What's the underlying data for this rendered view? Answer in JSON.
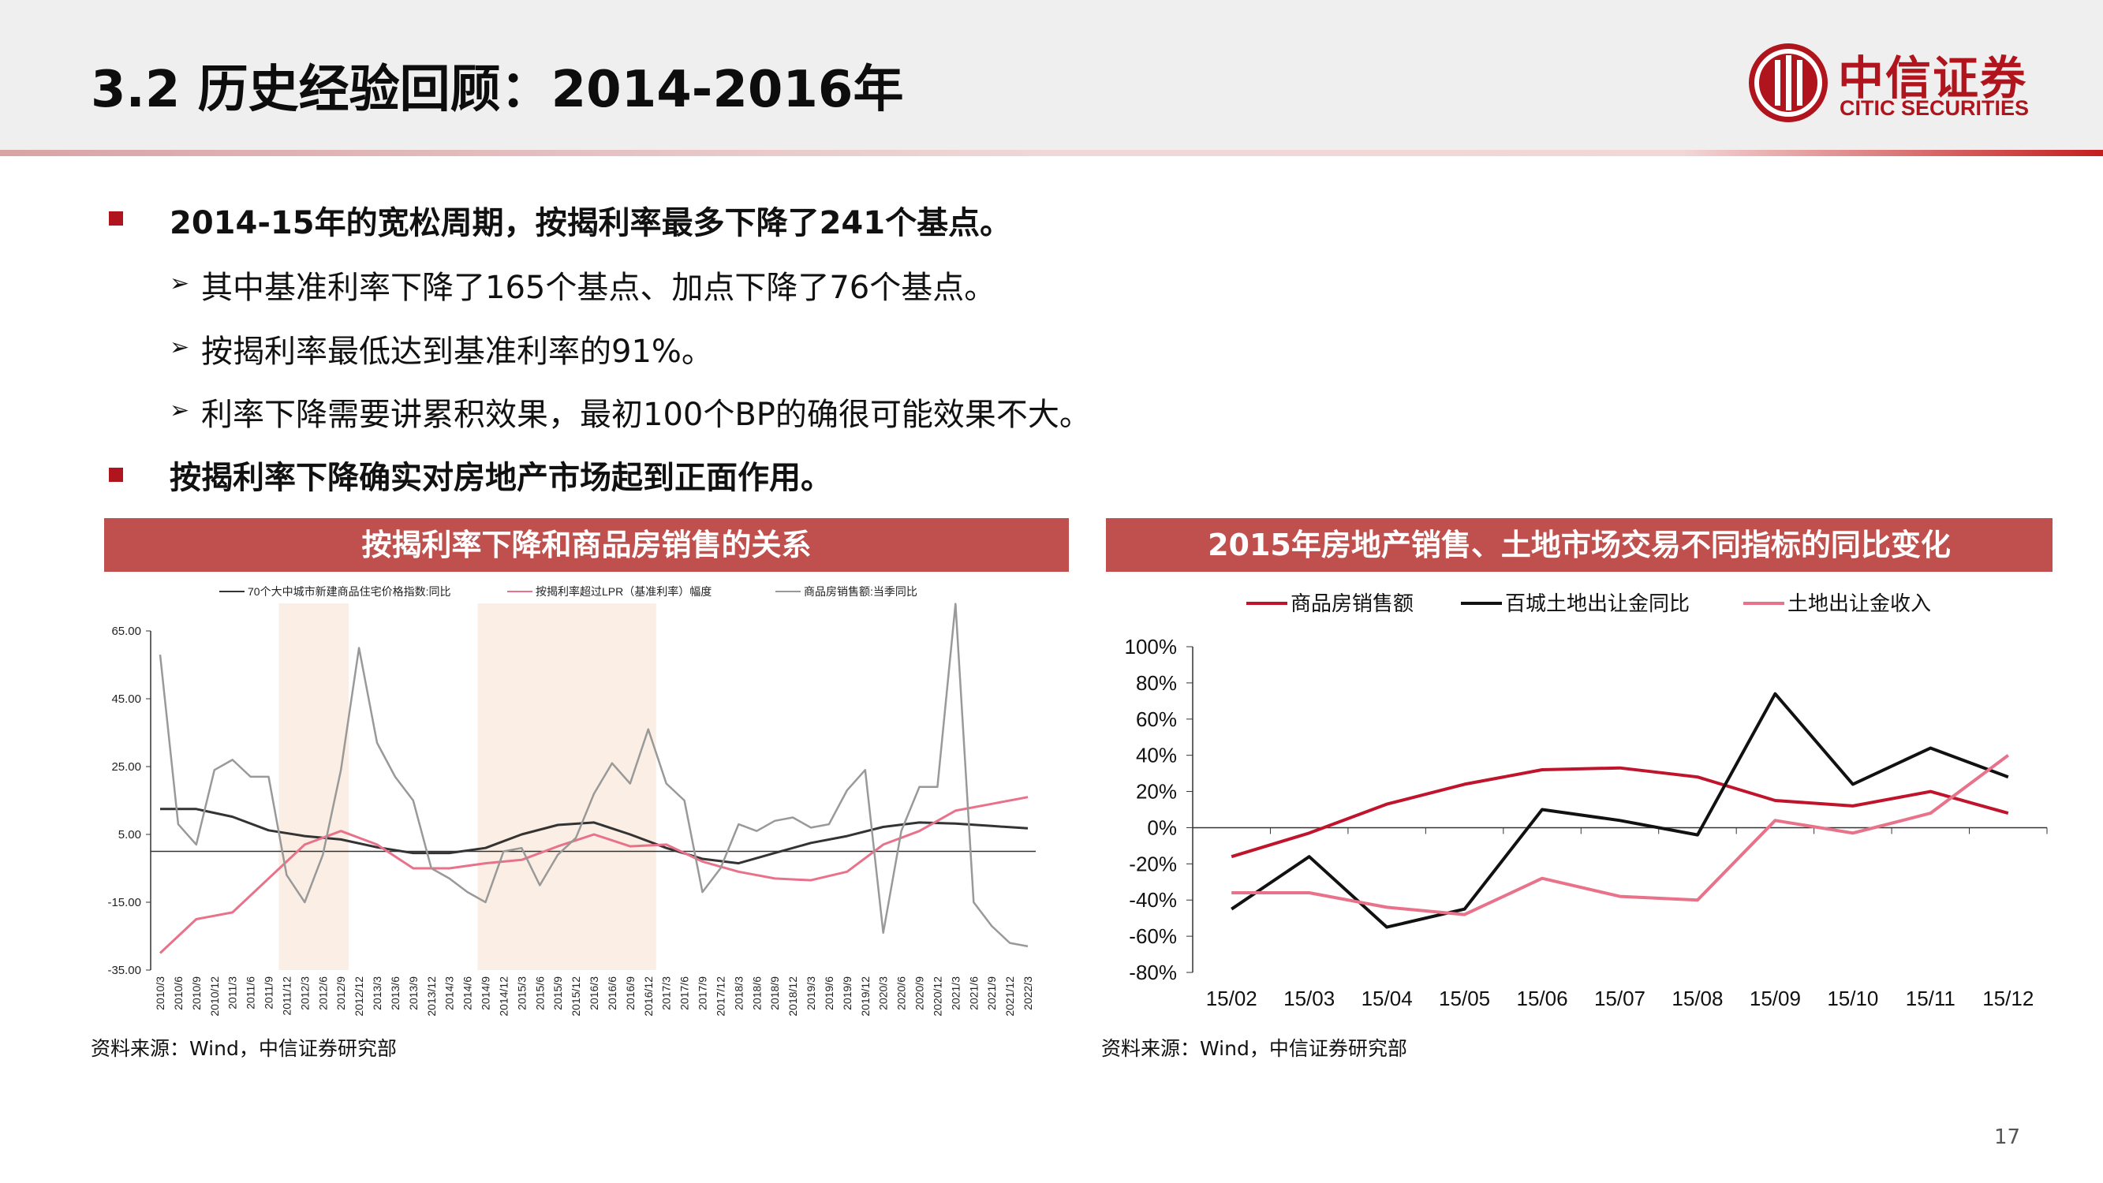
{
  "slide": {
    "title": "3.2 历史经验回顾：2014-2016年",
    "page_number": "17",
    "brand": {
      "name_cn": "中信证券",
      "name_en": "CITIC SECURITIES",
      "color": "#b0141c"
    }
  },
  "bullets": [
    {
      "level": 1,
      "text": "2014-15年的宽松周期，按揭利率最多下降了241个基点。"
    },
    {
      "level": 2,
      "text": "其中基准利率下降了165个基点、加点下降了76个基点。"
    },
    {
      "level": 2,
      "text": "按揭利率最低达到基准利率的91%。"
    },
    {
      "level": 2,
      "text": "利率下降需要讲累积效果，最初100个BP的确很可能效果不大。"
    },
    {
      "level": 1,
      "text": "按揭利率下降确实对房地产市场起到正面作用。"
    }
  ],
  "chart_data": [
    {
      "type": "line",
      "title": "按揭利率下降和商品房销售的关系",
      "source": "资料来源：Wind，中信证券研究部",
      "legend": [
        "70个大中城市新建商品住宅价格指数:同比",
        "按揭利率超过LPR（基准利率）幅度",
        "商品房销售额:当季同比"
      ],
      "legend_position": "top",
      "y_ticks": [
        "65.00",
        "45.00",
        "25.00",
        "5.00",
        "-15.00",
        "-35.00"
      ],
      "ylim": [
        -35,
        65
      ],
      "x_ticks": [
        "2010/3",
        "2010/6",
        "2010/9",
        "2010/12",
        "2011/3",
        "2011/6",
        "2011/9",
        "2011/12",
        "2012/3",
        "2012/6",
        "2012/9",
        "2012/12",
        "2013/3",
        "2013/6",
        "2013/9",
        "2013/12",
        "2014/3",
        "2014/6",
        "2014/9",
        "2014/12",
        "2015/3",
        "2015/6",
        "2015/9",
        "2015/12",
        "2016/3",
        "2016/6",
        "2016/9",
        "2016/12",
        "2017/3",
        "2017/6",
        "2017/9",
        "2017/12",
        "2018/3",
        "2018/6",
        "2018/9",
        "2018/12",
        "2019/3",
        "2019/6",
        "2019/9",
        "2019/12",
        "2020/3",
        "2020/6",
        "2020/9",
        "2020/12",
        "2021/3",
        "2021/6",
        "2021/9",
        "2021/12",
        "2022/3"
      ],
      "shaded_periods": [
        [
          "2011/12",
          "2012/9"
        ],
        [
          "2014/9",
          "2016/12"
        ]
      ],
      "colors": {
        "price_index": "#333333",
        "mortgage_spread": "#e8728a",
        "sales": "#999999",
        "shade": "#fbeee4"
      },
      "series": [
        {
          "name": "70个大中城市新建商品住宅价格指数:同比",
          "color": "#333333",
          "x": [
            0,
            2,
            4,
            6,
            8,
            10,
            12,
            14,
            16,
            18,
            20,
            22,
            24,
            26,
            28,
            30,
            32,
            34,
            36,
            38,
            40,
            42,
            44,
            46,
            48
          ],
          "values": [
            12.5,
            12.5,
            10.2,
            6.2,
            4.5,
            3.5,
            1.2,
            -0.5,
            -0.5,
            1.0,
            5.0,
            7.8,
            8.5,
            5.0,
            1.0,
            -2.2,
            -3.5,
            -0.5,
            2.5,
            4.5,
            7.2,
            8.5,
            8.2,
            7.5,
            6.8
          ]
        },
        {
          "name": "按揭利率超过LPR（基准利率）幅度",
          "color": "#e8728a",
          "x": [
            0,
            2,
            4,
            6,
            8,
            10,
            12,
            14,
            16,
            18,
            20,
            22,
            24,
            26,
            28,
            30,
            32,
            34,
            36,
            38,
            40,
            42,
            44,
            46,
            48
          ],
          "values": [
            -30,
            -20,
            -18,
            -8,
            2,
            6,
            2,
            -5,
            -5,
            -3.5,
            -2.5,
            1.5,
            5,
            1.5,
            2,
            -3,
            -6,
            -8,
            -8.5,
            -6,
            2,
            6,
            12,
            14,
            16
          ]
        },
        {
          "name": "商品房销售额:当季同比",
          "color": "#999999",
          "x": [
            0,
            1,
            2,
            3,
            4,
            5,
            6,
            7,
            8,
            9,
            10,
            11,
            12,
            13,
            14,
            15,
            16,
            17,
            18,
            19,
            20,
            21,
            22,
            23,
            24,
            25,
            26,
            27,
            28,
            29,
            30,
            31,
            32,
            33,
            34,
            35,
            36,
            37,
            38,
            39,
            40,
            41,
            42,
            43,
            44,
            45,
            46,
            47,
            48
          ],
          "values": [
            58,
            8,
            2,
            24,
            27,
            22,
            22,
            -7,
            -15,
            -1,
            24,
            60,
            32,
            22,
            15,
            -5,
            -8,
            -12,
            -15,
            0,
            1,
            -10,
            -1,
            4,
            17,
            26,
            20,
            36,
            20,
            15,
            -12,
            -5,
            8,
            6,
            9,
            10,
            7,
            8,
            18,
            24,
            -24,
            6,
            19,
            19,
            73,
            -15,
            -22,
            -27,
            -28
          ]
        }
      ]
    },
    {
      "type": "line",
      "title": "2015年房地产销售、土地市场交易不同指标的同比变化",
      "source": "资料来源：Wind，中信证券研究部",
      "legend_position": "top",
      "categories": [
        "15/02",
        "15/03",
        "15/04",
        "15/05",
        "15/06",
        "15/07",
        "15/08",
        "15/09",
        "15/10",
        "15/11",
        "15/12"
      ],
      "y_ticks": [
        "100%",
        "80%",
        "60%",
        "40%",
        "20%",
        "0%",
        "-20%",
        "-40%",
        "-60%",
        "-80%"
      ],
      "ylim": [
        -80,
        100
      ],
      "series": [
        {
          "name": "商品房销售额",
          "color": "#c0142c",
          "values": [
            -16,
            -3,
            13,
            24,
            32,
            33,
            28,
            15,
            12,
            20,
            8
          ]
        },
        {
          "name": "百城土地出让金同比",
          "color": "#111111",
          "values": [
            -45,
            -16,
            -55,
            -45,
            10,
            4,
            -4,
            74,
            24,
            44,
            28
          ]
        },
        {
          "name": "土地出让金收入",
          "color": "#e8728a",
          "values": [
            -36,
            -36,
            -44,
            -48,
            -28,
            -38,
            -40,
            4,
            -3,
            8,
            40
          ]
        }
      ]
    }
  ]
}
